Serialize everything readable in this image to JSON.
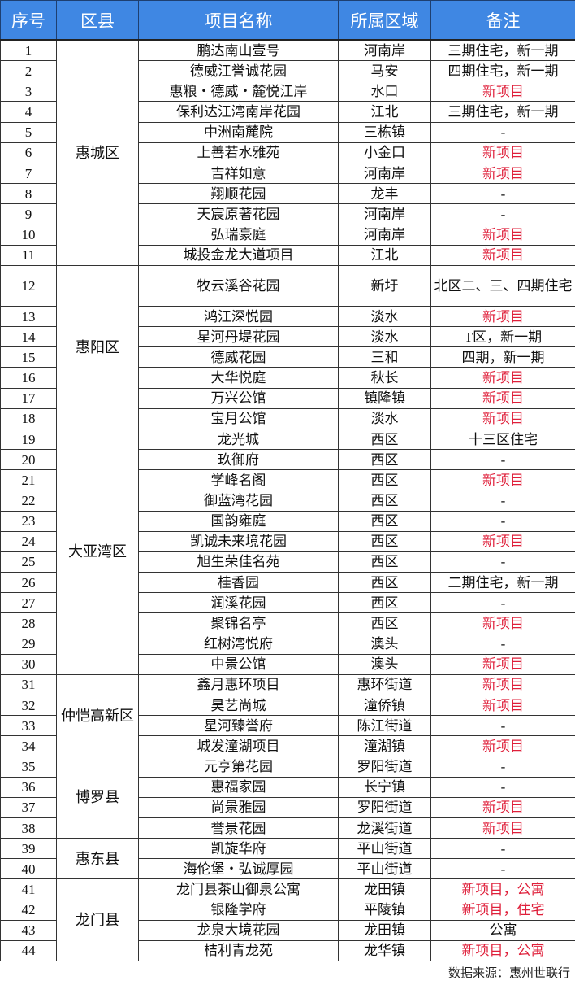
{
  "header": {
    "no": "序号",
    "district": "区县",
    "name": "项目名称",
    "area": "所属区域",
    "note": "备注"
  },
  "colors": {
    "header_bg": "#3f87e3",
    "note_red": "#df1f3a"
  },
  "groups": [
    {
      "district": "惠城区",
      "rows": [
        {
          "no": "1",
          "name": "鹏达南山壹号",
          "area": "河南岸",
          "note": "三期住宅，新一期",
          "red": false
        },
        {
          "no": "2",
          "name": "德威江誉诚花园",
          "area": "马安",
          "note": "四期住宅，新一期",
          "red": false
        },
        {
          "no": "3",
          "name": "惠粮・德威・麓悦江岸",
          "area": "水口",
          "note": "新项目",
          "red": true
        },
        {
          "no": "4",
          "name": "保利达江湾南岸花园",
          "area": "江北",
          "note": "三期住宅，新一期",
          "red": false
        },
        {
          "no": "5",
          "name": "中洲南麓院",
          "area": "三栋镇",
          "note": "-",
          "red": false
        },
        {
          "no": "6",
          "name": "上善若水雅苑",
          "area": "小金口",
          "note": "新项目",
          "red": true
        },
        {
          "no": "7",
          "name": "吉祥如意",
          "area": "河南岸",
          "note": "新项目",
          "red": true
        },
        {
          "no": "8",
          "name": "翔顺花园",
          "area": "龙丰",
          "note": "-",
          "red": false
        },
        {
          "no": "9",
          "name": "天宸原著花园",
          "area": "河南岸",
          "note": "-",
          "red": false
        },
        {
          "no": "10",
          "name": "弘瑞豪庭",
          "area": "河南岸",
          "note": "新项目",
          "red": true
        },
        {
          "no": "11",
          "name": "城投金龙大道项目",
          "area": "江北",
          "note": "新项目",
          "red": true
        }
      ]
    },
    {
      "district": "惠阳区",
      "rows": [
        {
          "no": "12",
          "name": "牧云溪谷花园",
          "area": "新圩",
          "note": "北区二、三、四期住宅",
          "red": false,
          "tall": true
        },
        {
          "no": "13",
          "name": "鸿江深悦园",
          "area": "淡水",
          "note": "新项目",
          "red": true
        },
        {
          "no": "14",
          "name": "星河丹堤花园",
          "area": "淡水",
          "note": "T区，新一期",
          "red": false
        },
        {
          "no": "15",
          "name": "德威花园",
          "area": "三和",
          "note": "四期，新一期",
          "red": false
        },
        {
          "no": "16",
          "name": "大华悦庭",
          "area": "秋长",
          "note": "新项目",
          "red": true
        },
        {
          "no": "17",
          "name": "万兴公馆",
          "area": "镇隆镇",
          "note": "新项目",
          "red": true
        },
        {
          "no": "18",
          "name": "宝月公馆",
          "area": "淡水",
          "note": "新项目",
          "red": true
        }
      ]
    },
    {
      "district": "大亚湾区",
      "rows": [
        {
          "no": "19",
          "name": "龙光城",
          "area": "西区",
          "note": "十三区住宅",
          "red": false
        },
        {
          "no": "20",
          "name": "玖御府",
          "area": "西区",
          "note": "-",
          "red": false
        },
        {
          "no": "21",
          "name": "学峰名阁",
          "area": "西区",
          "note": "新项目",
          "red": true
        },
        {
          "no": "22",
          "name": "御蓝湾花园",
          "area": "西区",
          "note": "-",
          "red": false
        },
        {
          "no": "23",
          "name": "国韵雍庭",
          "area": "西区",
          "note": "-",
          "red": false
        },
        {
          "no": "24",
          "name": "凯诚未来境花园",
          "area": "西区",
          "note": "新项目",
          "red": true
        },
        {
          "no": "25",
          "name": "旭生荣佳名苑",
          "area": "西区",
          "note": "-",
          "red": false
        },
        {
          "no": "26",
          "name": "桂香园",
          "area": "西区",
          "note": "二期住宅，新一期",
          "red": false
        },
        {
          "no": "27",
          "name": "润溪花园",
          "area": "西区",
          "note": "-",
          "red": false
        },
        {
          "no": "28",
          "name": "聚锦名亭",
          "area": "西区",
          "note": "新项目",
          "red": true
        },
        {
          "no": "29",
          "name": "红树湾悦府",
          "area": "澳头",
          "note": "-",
          "red": false
        },
        {
          "no": "30",
          "name": "中景公馆",
          "area": "澳头",
          "note": "新项目",
          "red": true
        }
      ]
    },
    {
      "district": "仲恺高新区",
      "rows": [
        {
          "no": "31",
          "name": "鑫月惠环项目",
          "area": "惠环街道",
          "note": "新项目",
          "red": true
        },
        {
          "no": "32",
          "name": "昊艺尚城",
          "area": "潼侨镇",
          "note": "新项目",
          "red": true
        },
        {
          "no": "33",
          "name": "星河臻誉府",
          "area": "陈江街道",
          "note": "-",
          "red": false
        },
        {
          "no": "34",
          "name": "城发潼湖项目",
          "area": "潼湖镇",
          "note": "新项目",
          "red": true
        }
      ]
    },
    {
      "district": "博罗县",
      "rows": [
        {
          "no": "35",
          "name": "元亨第花园",
          "area": "罗阳街道",
          "note": "-",
          "red": false
        },
        {
          "no": "36",
          "name": "惠福家园",
          "area": "长宁镇",
          "note": "-",
          "red": false
        },
        {
          "no": "37",
          "name": "尚景雅园",
          "area": "罗阳街道",
          "note": "新项目",
          "red": true
        },
        {
          "no": "38",
          "name": "誉景花园",
          "area": "龙溪街道",
          "note": "新项目",
          "red": true
        }
      ]
    },
    {
      "district": "惠东县",
      "rows": [
        {
          "no": "39",
          "name": "凯旋华府",
          "area": "平山街道",
          "note": "-",
          "red": false
        },
        {
          "no": "40",
          "name": "海伦堡・弘诚厚园",
          "area": "平山街道",
          "note": "-",
          "red": false
        }
      ]
    },
    {
      "district": "龙门县",
      "rows": [
        {
          "no": "41",
          "name": "龙门县茶山御泉公寓",
          "area": "龙田镇",
          "note": "新项目，公寓",
          "red": true
        },
        {
          "no": "42",
          "name": "银隆学府",
          "area": "平陵镇",
          "note": "新项目，住宅",
          "red": true
        },
        {
          "no": "43",
          "name": "龙泉大境花园",
          "area": "龙田镇",
          "note": "公寓",
          "red": false
        },
        {
          "no": "44",
          "name": "桔利青龙苑",
          "area": "龙华镇",
          "note": "新项目，公寓",
          "red": true
        }
      ]
    }
  ],
  "footer": {
    "source": "数据来源：惠州世联行"
  }
}
